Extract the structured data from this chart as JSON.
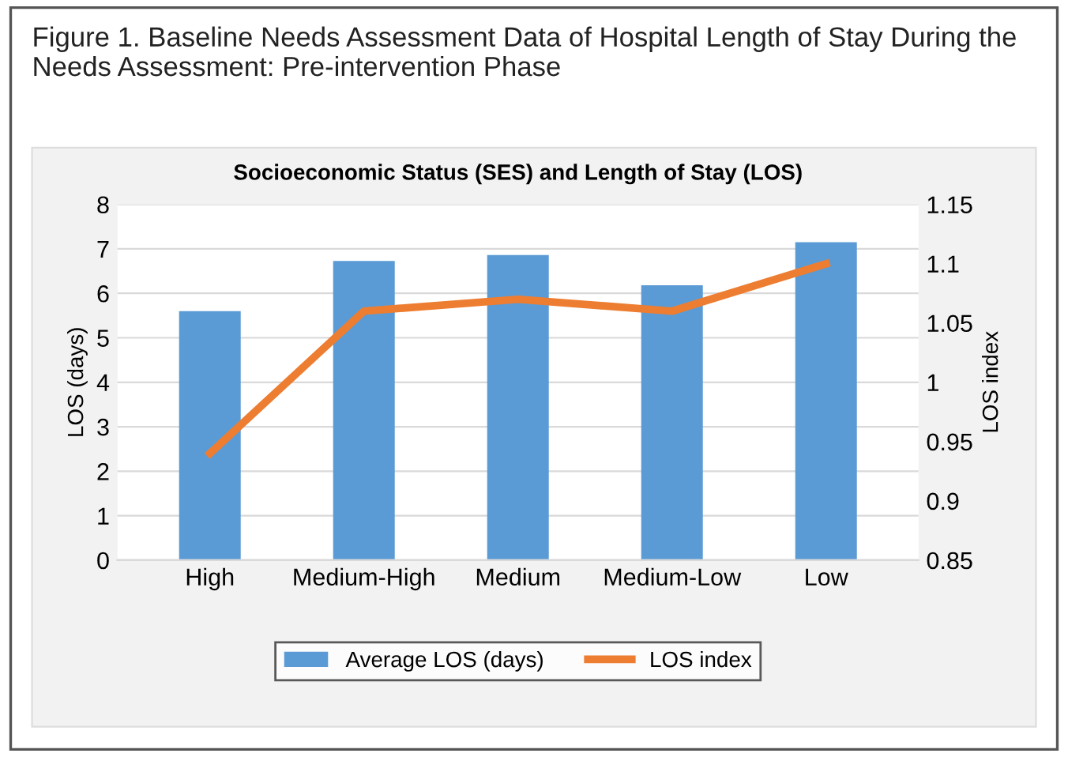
{
  "chart_data": {
    "type": "bar",
    "title": "Figure 1. Baseline Needs Assessment Data of Hospital Length of Stay During the Needs Assessment: Pre-intervention Phase",
    "subtitle": "Socioeconomic Status (SES) and Length of Stay (LOS)",
    "ylabel": "LOS (days)",
    "y2label": "LOS index",
    "categories": [
      "High",
      "Medium-High",
      "Medium",
      "Medium-Low",
      "Low"
    ],
    "series": [
      {
        "name": "Average LOS (days)",
        "color": "#5b9bd5",
        "values": [
          5.6,
          6.73,
          6.86,
          6.18,
          7.15
        ]
      },
      {
        "name": "LOS index",
        "type": "line",
        "axis": "y2",
        "color": "#ed7d31",
        "marker": "none",
        "values": [
          0.94,
          1.06,
          1.07,
          1.06,
          1.1
        ]
      }
    ],
    "ylim": [
      0,
      8
    ],
    "yticks": [
      0,
      1,
      2,
      3,
      4,
      5,
      6,
      7,
      8
    ],
    "y2lim": [
      0.85,
      1.15
    ],
    "y2ticks": [
      0.85,
      0.9,
      0.95,
      1,
      1.05,
      1.1,
      1.15
    ],
    "grid": "y",
    "legend": "bottom"
  }
}
